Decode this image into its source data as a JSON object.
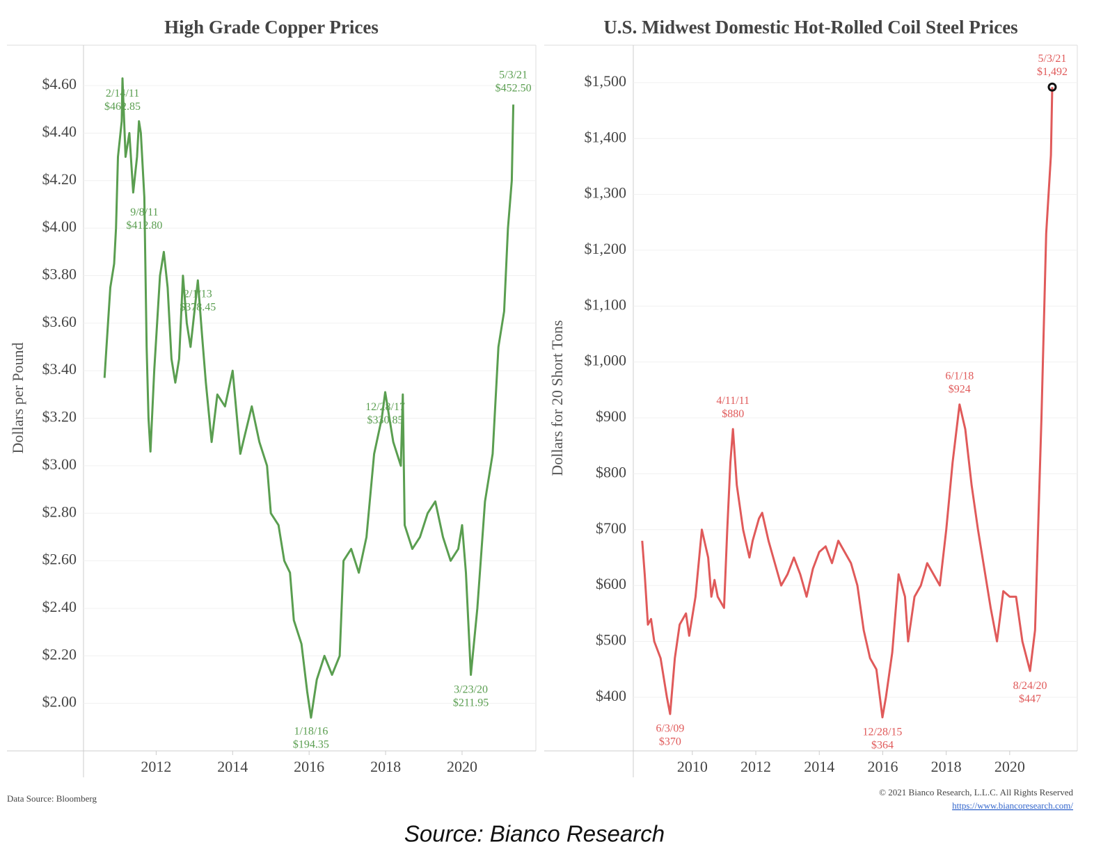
{
  "chart_data": [
    {
      "type": "line",
      "title": "High Grade Copper Prices",
      "ylabel": "Dollars per Pound",
      "xlim": [
        2010.1,
        2021.93
      ],
      "xticks": [
        2012,
        2014,
        2016,
        2018,
        2020
      ],
      "ylim": [
        1.8,
        4.77
      ],
      "yticks": [
        {
          "value": 2.0,
          "label": "$2.00"
        },
        {
          "value": 2.2,
          "label": "$2.20"
        },
        {
          "value": 2.4,
          "label": "$2.40"
        },
        {
          "value": 2.6,
          "label": "$2.60"
        },
        {
          "value": 2.8,
          "label": "$2.80"
        },
        {
          "value": 3.0,
          "label": "$3.00"
        },
        {
          "value": 3.2,
          "label": "$3.20"
        },
        {
          "value": 3.4,
          "label": "$3.40"
        },
        {
          "value": 3.6,
          "label": "$3.60"
        },
        {
          "value": 3.8,
          "label": "$3.80"
        },
        {
          "value": 4.0,
          "label": "$4.00"
        },
        {
          "value": 4.2,
          "label": "$4.20"
        },
        {
          "value": 4.4,
          "label": "$4.40"
        },
        {
          "value": 4.6,
          "label": "$4.60"
        }
      ],
      "grid": true,
      "series": [
        {
          "color": "#5a9e50",
          "x": [
            2010.65,
            2010.7,
            2010.8,
            2010.9,
            2010.95,
            2011.0,
            2011.1,
            2011.12,
            2011.2,
            2011.3,
            2011.4,
            2011.5,
            2011.55,
            2011.6,
            2011.69,
            2011.75,
            2011.8,
            2011.85,
            2011.95,
            2012.1,
            2012.2,
            2012.3,
            2012.4,
            2012.5,
            2012.6,
            2012.7,
            2012.8,
            2012.9,
            2013.09,
            2013.2,
            2013.3,
            2013.45,
            2013.6,
            2013.8,
            2014.0,
            2014.2,
            2014.5,
            2014.7,
            2014.9,
            2015.0,
            2015.2,
            2015.35,
            2015.5,
            2015.6,
            2015.8,
            2015.95,
            2016.05,
            2016.2,
            2016.4,
            2016.6,
            2016.8,
            2016.9,
            2017.1,
            2017.3,
            2017.5,
            2017.7,
            2017.9,
            2017.99,
            2018.2,
            2018.4,
            2018.45,
            2018.5,
            2018.7,
            2018.9,
            2019.1,
            2019.3,
            2019.5,
            2019.7,
            2019.9,
            2020.0,
            2020.1,
            2020.23,
            2020.4,
            2020.6,
            2020.8,
            2020.95,
            2021.1,
            2021.2,
            2021.3,
            2021.34
          ],
          "values": [
            3.37,
            3.5,
            3.75,
            3.85,
            4.0,
            4.3,
            4.45,
            4.63,
            4.3,
            4.4,
            4.15,
            4.3,
            4.45,
            4.4,
            4.13,
            3.5,
            3.2,
            3.06,
            3.4,
            3.8,
            3.9,
            3.75,
            3.45,
            3.35,
            3.45,
            3.8,
            3.6,
            3.5,
            3.78,
            3.55,
            3.35,
            3.1,
            3.3,
            3.25,
            3.4,
            3.05,
            3.25,
            3.1,
            3.0,
            2.8,
            2.75,
            2.6,
            2.55,
            2.35,
            2.25,
            2.05,
            1.94,
            2.1,
            2.2,
            2.12,
            2.2,
            2.6,
            2.65,
            2.55,
            2.7,
            3.05,
            3.2,
            3.31,
            3.1,
            3.0,
            3.3,
            2.75,
            2.65,
            2.7,
            2.8,
            2.85,
            2.7,
            2.6,
            2.65,
            2.75,
            2.55,
            2.12,
            2.4,
            2.85,
            3.05,
            3.5,
            3.65,
            4.0,
            4.2,
            4.52
          ]
        }
      ],
      "annotations": [
        {
          "x": 2011.12,
          "y": 4.6285,
          "date": "2/14/11",
          "label": "$462.85"
        },
        {
          "x": 2011.69,
          "y": 4.128,
          "date": "9/8/11",
          "label": "$412.80"
        },
        {
          "x": 2013.09,
          "y": 3.7845,
          "date": "2/1/13",
          "label": "$378.45"
        },
        {
          "x": 2016.05,
          "y": 1.9435,
          "date": "1/18/16",
          "label": "$194.35"
        },
        {
          "x": 2017.99,
          "y": 3.3085,
          "date": "12/28/17",
          "label": "$330.85"
        },
        {
          "x": 2020.23,
          "y": 2.1195,
          "date": "3/23/20",
          "label": "$211.95"
        },
        {
          "x": 2021.34,
          "y": 4.525,
          "date": "5/3/21",
          "label": "$452.50"
        }
      ]
    },
    {
      "type": "line",
      "title": "U.S. Midwest Domestic Hot-Rolled Coil Steel Prices",
      "ylabel": "Dollars for 20 Short Tons",
      "xlim": [
        2008.14,
        2022.13
      ],
      "xticks": [
        2010,
        2012,
        2014,
        2016,
        2018,
        2020
      ],
      "ylim": [
        304,
        1567
      ],
      "yticks": [
        {
          "value": 400,
          "label": "$400"
        },
        {
          "value": 500,
          "label": "$500"
        },
        {
          "value": 600,
          "label": "$600"
        },
        {
          "value": 700,
          "label": "$700"
        },
        {
          "value": 800,
          "label": "$800"
        },
        {
          "value": 900,
          "label": "$900"
        },
        {
          "value": 1000,
          "label": "$1,000"
        },
        {
          "value": 1100,
          "label": "$1,100"
        },
        {
          "value": 1200,
          "label": "$1,200"
        },
        {
          "value": 1300,
          "label": "$1,300"
        },
        {
          "value": 1400,
          "label": "$1,400"
        },
        {
          "value": 1500,
          "label": "$1,500"
        }
      ],
      "grid": true,
      "series": [
        {
          "color": "#e05a5a",
          "x": [
            2008.42,
            2008.5,
            2008.6,
            2008.7,
            2008.8,
            2009.0,
            2009.2,
            2009.3,
            2009.45,
            2009.6,
            2009.8,
            2009.9,
            2010.1,
            2010.3,
            2010.5,
            2010.6,
            2010.7,
            2010.8,
            2011.0,
            2011.1,
            2011.2,
            2011.28,
            2011.4,
            2011.6,
            2011.8,
            2011.9,
            2012.1,
            2012.2,
            2012.4,
            2012.6,
            2012.8,
            2013.0,
            2013.2,
            2013.4,
            2013.6,
            2013.8,
            2014.0,
            2014.2,
            2014.4,
            2014.6,
            2014.8,
            2015.0,
            2015.2,
            2015.4,
            2015.6,
            2015.8,
            2015.99,
            2016.1,
            2016.3,
            2016.5,
            2016.7,
            2016.8,
            2017.0,
            2017.2,
            2017.4,
            2017.6,
            2017.8,
            2018.0,
            2018.2,
            2018.42,
            2018.6,
            2018.8,
            2019.0,
            2019.2,
            2019.4,
            2019.6,
            2019.8,
            2020.0,
            2020.2,
            2020.4,
            2020.64,
            2020.8,
            2021.0,
            2021.15,
            2021.3,
            2021.34
          ],
          "values": [
            680,
            620,
            530,
            540,
            500,
            470,
            400,
            370,
            470,
            530,
            550,
            510,
            580,
            700,
            650,
            580,
            610,
            580,
            560,
            700,
            820,
            880,
            780,
            700,
            650,
            680,
            720,
            730,
            680,
            640,
            600,
            620,
            650,
            620,
            580,
            630,
            660,
            670,
            640,
            680,
            660,
            640,
            600,
            520,
            470,
            450,
            364,
            400,
            480,
            620,
            580,
            500,
            580,
            600,
            640,
            620,
            600,
            700,
            820,
            924,
            880,
            780,
            700,
            630,
            560,
            500,
            590,
            580,
            580,
            500,
            447,
            520,
            900,
            1230,
            1370,
            1492
          ]
        }
      ],
      "annotations": [
        {
          "x": 2009.3,
          "y": 370,
          "date": "6/3/09",
          "label": "$370"
        },
        {
          "x": 2011.28,
          "y": 880,
          "date": "4/11/11",
          "label": "$880"
        },
        {
          "x": 2015.99,
          "y": 364,
          "date": "12/28/15",
          "label": "$364"
        },
        {
          "x": 2018.42,
          "y": 924,
          "date": "6/1/18",
          "label": "$924"
        },
        {
          "x": 2020.64,
          "y": 447,
          "date": "8/24/20",
          "label": "$447"
        },
        {
          "x": 2021.34,
          "y": 1492,
          "date": "5/3/21",
          "label": "$1,492",
          "highlight": true
        }
      ]
    }
  ],
  "data_source": "Data Source: Bloomberg",
  "copyright": "© 2021 Bianco Research, L.L.C. All Rights Reserved",
  "url": "https://www.biancoresearch.com/",
  "caption": "Source: Bianco Research"
}
